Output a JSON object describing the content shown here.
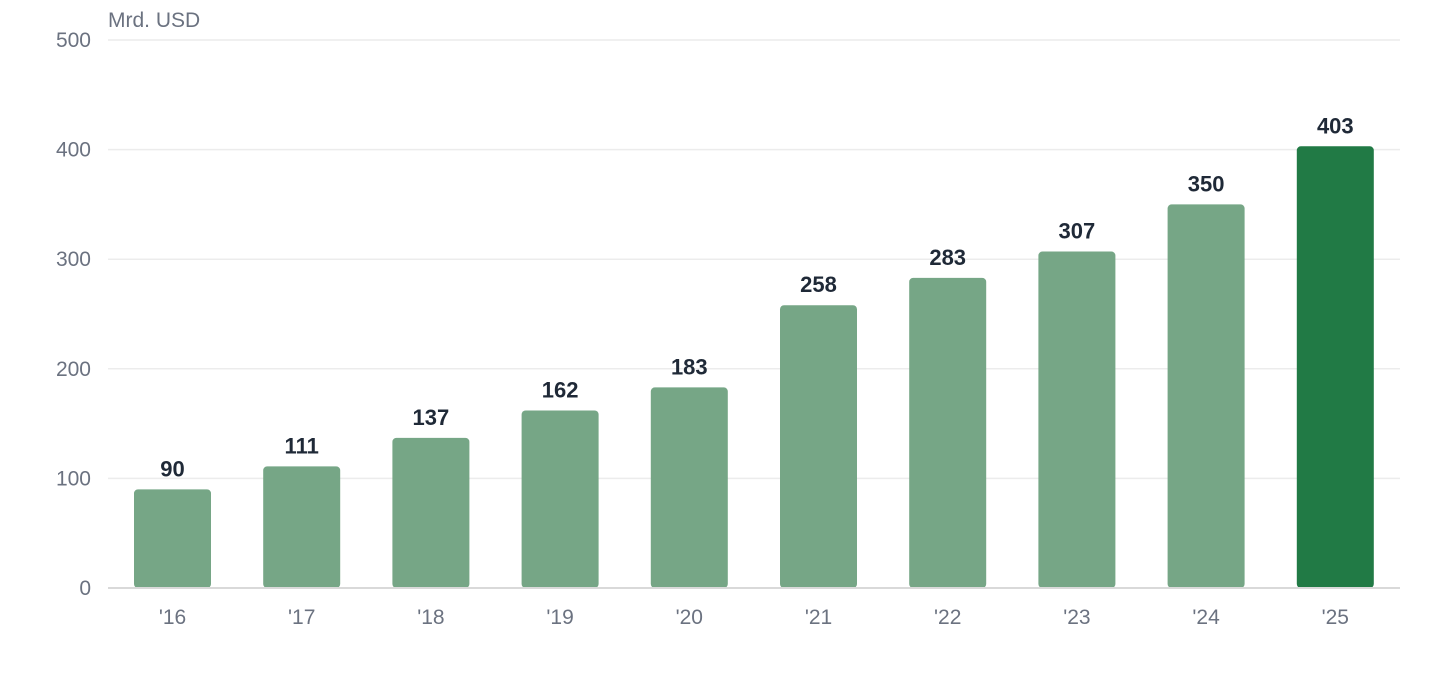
{
  "chart_data": {
    "type": "bar",
    "ylabel": "Mrd. USD",
    "categories": [
      "'16",
      "'17",
      "'18",
      "'19",
      "'20",
      "'21",
      "'22",
      "'23",
      "'24",
      "'25"
    ],
    "values": [
      90,
      111,
      137,
      162,
      183,
      258,
      283,
      307,
      350,
      403
    ],
    "ylim": [
      0,
      500
    ],
    "yticks": [
      0,
      100,
      200,
      300,
      400,
      500
    ],
    "grid": true,
    "legend": "none",
    "bar_color": "#76a686",
    "highlight_color": "#217a45",
    "highlight_index": 9
  }
}
